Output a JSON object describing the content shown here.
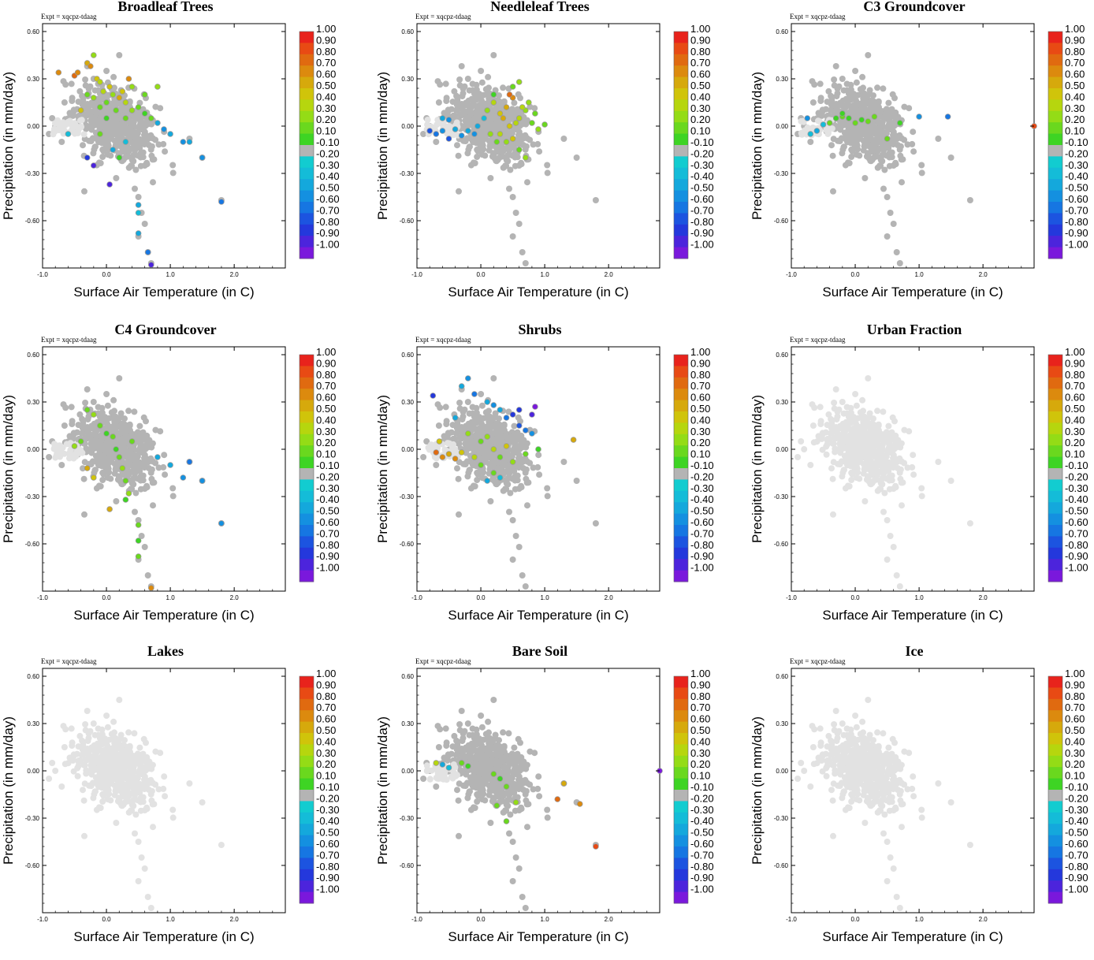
{
  "figure": {
    "xlabel": "Surface Air Temperature (in C)",
    "ylabel": "Precipitation (in mm/day)",
    "expt_label": "Expt = xqcpz-tdaag",
    "xlim": [
      -1.0,
      2.8
    ],
    "ylim": [
      -0.9,
      0.65
    ],
    "xticks": [
      -1.0,
      0.0,
      1.0,
      2.0
    ],
    "xtick_labels": [
      "-1.0",
      "0.0",
      "1.0",
      "2.0"
    ],
    "yticks": [
      0.6,
      0.3,
      0.0,
      -0.3,
      -0.6
    ],
    "ytick_labels": [
      "0.60",
      "0.30",
      "0.00",
      "-0.30",
      "-0.60"
    ],
    "colorbar": {
      "labels": [
        "1.00",
        "0.90",
        "0.80",
        "0.70",
        "0.60",
        "0.50",
        "0.40",
        "0.30",
        "0.20",
        "0.10",
        "-0.10",
        "-0.20",
        "-0.30",
        "-0.40",
        "-0.50",
        "-0.60",
        "-0.70",
        "-0.80",
        "-0.90",
        "-1.00"
      ],
      "colors": [
        "#e8231c",
        "#e84a14",
        "#e06a10",
        "#dc8a0e",
        "#d6a90c",
        "#d0c40a",
        "#b6d60e",
        "#94dc16",
        "#6ad81e",
        "#3ed424",
        "#b4b4b4",
        "#12ccd0",
        "#14bcd8",
        "#14a8dc",
        "#1490e0",
        "#1676e2",
        "#1c54e0",
        "#2438dc",
        "#4c24dc",
        "#7a18dc"
      ]
    }
  },
  "chart_data": [
    {
      "type": "scatter",
      "title": "Broadleaf Trees",
      "xlabel": "Surface Air Temperature (in C)",
      "ylabel": "Precipitation (in mm/day)",
      "xlim": [
        -1.0,
        2.8
      ],
      "ylim": [
        -0.9,
        0.65
      ],
      "points": [
        [
          -0.5,
          0.32,
          0.8
        ],
        [
          -0.45,
          0.34,
          0.7
        ],
        [
          -0.3,
          0.4,
          0.6
        ],
        [
          -0.25,
          0.38,
          0.7
        ],
        [
          -0.2,
          0.45,
          0.3
        ],
        [
          -0.15,
          0.3,
          0.5
        ],
        [
          -0.1,
          0.28,
          0.4
        ],
        [
          -0.3,
          0.2,
          0.2
        ],
        [
          -0.2,
          0.18,
          0.3
        ],
        [
          -0.05,
          0.22,
          0.4
        ],
        [
          0.0,
          0.15,
          0.2
        ],
        [
          0.05,
          0.25,
          0.5
        ],
        [
          0.1,
          0.2,
          0.3
        ],
        [
          0.2,
          0.18,
          0.6
        ],
        [
          0.25,
          0.22,
          0.5
        ],
        [
          0.3,
          0.15,
          0.4
        ],
        [
          0.15,
          0.1,
          0.2
        ],
        [
          0.3,
          0.05,
          0.2
        ],
        [
          0.4,
          0.1,
          0.3
        ],
        [
          0.5,
          0.12,
          0.2
        ],
        [
          0.6,
          0.08,
          0.1
        ],
        [
          0.7,
          0.05,
          0.2
        ],
        [
          0.8,
          0.02,
          -0.3
        ],
        [
          0.9,
          -0.02,
          -0.4
        ],
        [
          1.0,
          -0.05,
          -0.3
        ],
        [
          1.2,
          -0.1,
          -0.4
        ],
        [
          1.3,
          -0.1,
          -0.3
        ],
        [
          1.5,
          -0.2,
          -0.4
        ],
        [
          1.8,
          -0.48,
          -0.5
        ],
        [
          0.5,
          -0.5,
          -0.3
        ],
        [
          0.5,
          -0.55,
          -0.2
        ],
        [
          0.5,
          -0.68,
          -0.3
        ],
        [
          0.65,
          -0.8,
          -0.5
        ],
        [
          0.7,
          -0.88,
          -0.8
        ],
        [
          0.05,
          -0.37,
          -0.8
        ],
        [
          -0.3,
          -0.2,
          -0.7
        ],
        [
          -0.2,
          -0.25,
          -0.8
        ],
        [
          -0.6,
          -0.05,
          -0.2
        ],
        [
          -0.75,
          0.34,
          0.7
        ],
        [
          -0.4,
          0.1,
          0.5
        ],
        [
          -0.1,
          -0.05,
          0.2
        ],
        [
          0.2,
          -0.2,
          0.1
        ],
        [
          0.0,
          0.05,
          0.1
        ],
        [
          -0.1,
          0.12,
          0.2
        ],
        [
          0.4,
          0.25,
          0.3
        ],
        [
          0.6,
          0.2,
          0.2
        ],
        [
          0.8,
          0.25,
          0.3
        ],
        [
          0.3,
          -0.1,
          -0.2
        ],
        [
          0.1,
          -0.15,
          -0.3
        ],
        [
          0.35,
          0.3,
          0.7
        ]
      ]
    },
    {
      "type": "scatter",
      "title": "Needleleaf Trees",
      "xlabel": "Surface Air Temperature (in C)",
      "ylabel": "Precipitation (in mm/day)",
      "xlim": [
        -1.0,
        2.8
      ],
      "ylim": [
        -0.9,
        0.65
      ],
      "points": [
        [
          -0.7,
          -0.05,
          -0.5
        ],
        [
          -0.6,
          -0.03,
          -0.4
        ],
        [
          -0.5,
          -0.08,
          -0.6
        ],
        [
          -0.4,
          -0.02,
          -0.3
        ],
        [
          -0.3,
          -0.06,
          -0.4
        ],
        [
          -0.2,
          -0.03,
          -0.3
        ],
        [
          -0.1,
          -0.05,
          -0.4
        ],
        [
          -0.6,
          0.05,
          -0.3
        ],
        [
          -0.5,
          0.04,
          -0.4
        ],
        [
          -0.8,
          -0.03,
          -0.6
        ],
        [
          0.1,
          0.1,
          0.3
        ],
        [
          0.2,
          0.15,
          0.4
        ],
        [
          0.3,
          0.08,
          0.5
        ],
        [
          0.4,
          0.12,
          0.6
        ],
        [
          0.5,
          0.18,
          0.7
        ],
        [
          0.6,
          0.05,
          0.4
        ],
        [
          0.7,
          0.1,
          0.3
        ],
        [
          0.8,
          0.02,
          0.2
        ],
        [
          0.9,
          -0.02,
          0.3
        ],
        [
          1.0,
          0.01,
          0.2
        ],
        [
          0.3,
          -0.05,
          0.4
        ],
        [
          0.4,
          -0.1,
          0.3
        ],
        [
          0.5,
          -0.08,
          0.5
        ],
        [
          0.6,
          -0.15,
          0.2
        ],
        [
          0.7,
          -0.2,
          0.3
        ],
        [
          0.5,
          0.25,
          0.2
        ],
        [
          0.6,
          0.28,
          0.3
        ],
        [
          0.2,
          0.2,
          0.1
        ],
        [
          0.35,
          0.05,
          0.6
        ],
        [
          0.45,
          0.0,
          0.5
        ],
        [
          0.55,
          0.02,
          0.4
        ],
        [
          0.25,
          -0.1,
          0.2
        ],
        [
          0.15,
          -0.05,
          0.3
        ],
        [
          0.65,
          0.12,
          0.4
        ],
        [
          0.75,
          0.15,
          0.3
        ],
        [
          0.85,
          0.08,
          0.2
        ],
        [
          0.05,
          0.05,
          -0.2
        ],
        [
          -0.05,
          0.0,
          -0.3
        ],
        [
          0.45,
          0.2,
          0.8
        ]
      ]
    },
    {
      "type": "scatter",
      "title": "C3 Groundcover",
      "xlabel": "Surface Air Temperature (in C)",
      "ylabel": "Precipitation (in mm/day)",
      "xlim": [
        -1.0,
        2.8
      ],
      "ylim": [
        -0.9,
        0.65
      ],
      "points": [
        [
          -0.4,
          0.02,
          0.2
        ],
        [
          -0.3,
          0.05,
          0.1
        ],
        [
          -0.2,
          0.06,
          0.2
        ],
        [
          -0.1,
          0.05,
          0.1
        ],
        [
          0.0,
          0.02,
          0.2
        ],
        [
          0.1,
          0.04,
          0.1
        ],
        [
          0.2,
          0.03,
          0.2
        ],
        [
          -0.5,
          0.01,
          -0.2
        ],
        [
          -0.6,
          -0.03,
          -0.3
        ],
        [
          -0.7,
          -0.05,
          -0.2
        ],
        [
          -0.75,
          0.05,
          -0.4
        ],
        [
          0.5,
          -0.08,
          0.2
        ],
        [
          0.7,
          0.02,
          0.1
        ],
        [
          1.0,
          0.06,
          -0.4
        ],
        [
          1.45,
          0.06,
          -0.5
        ],
        [
          2.8,
          0.0,
          0.9
        ],
        [
          -0.2,
          0.08,
          0.1
        ],
        [
          0.3,
          0.06,
          0.2
        ]
      ]
    },
    {
      "type": "scatter",
      "title": "C4 Groundcover",
      "xlabel": "Surface Air Temperature (in C)",
      "ylabel": "Precipitation (in mm/day)",
      "xlim": [
        -1.0,
        2.8
      ],
      "ylim": [
        -0.9,
        0.65
      ],
      "points": [
        [
          -0.3,
          0.25,
          0.2
        ],
        [
          -0.2,
          0.22,
          0.3
        ],
        [
          -0.1,
          0.15,
          0.2
        ],
        [
          0.0,
          0.1,
          0.1
        ],
        [
          0.1,
          0.08,
          0.2
        ],
        [
          0.15,
          0.0,
          0.1
        ],
        [
          0.2,
          -0.05,
          0.2
        ],
        [
          0.25,
          -0.12,
          0.3
        ],
        [
          0.3,
          -0.2,
          0.2
        ],
        [
          0.35,
          -0.28,
          0.3
        ],
        [
          0.3,
          -0.32,
          0.1
        ],
        [
          0.5,
          -0.48,
          0.2
        ],
        [
          0.5,
          -0.58,
          0.1
        ],
        [
          0.5,
          -0.68,
          0.2
        ],
        [
          0.7,
          -0.88,
          0.7
        ],
        [
          0.05,
          -0.38,
          0.6
        ],
        [
          -0.2,
          -0.18,
          0.5
        ],
        [
          -0.3,
          -0.12,
          0.6
        ],
        [
          0.8,
          -0.05,
          -0.3
        ],
        [
          1.0,
          -0.1,
          -0.3
        ],
        [
          1.2,
          -0.18,
          -0.4
        ],
        [
          1.3,
          -0.08,
          -0.5
        ],
        [
          1.5,
          -0.2,
          -0.4
        ],
        [
          1.8,
          -0.47,
          -0.4
        ],
        [
          -0.5,
          0.02,
          0.3
        ],
        [
          -0.4,
          0.05,
          0.2
        ],
        [
          0.4,
          0.05,
          0.2
        ]
      ]
    },
    {
      "type": "scatter",
      "title": "Shrubs",
      "xlabel": "Surface Air Temperature (in C)",
      "ylabel": "Precipitation (in mm/day)",
      "xlim": [
        -1.0,
        2.8
      ],
      "ylim": [
        -0.9,
        0.65
      ],
      "points": [
        [
          -0.7,
          -0.02,
          0.8
        ],
        [
          -0.6,
          -0.05,
          0.7
        ],
        [
          -0.5,
          -0.03,
          0.6
        ],
        [
          -0.4,
          -0.06,
          0.7
        ],
        [
          -0.3,
          -0.02,
          0.5
        ],
        [
          -0.65,
          0.05,
          0.5
        ],
        [
          -0.75,
          0.34,
          -0.7
        ],
        [
          -0.2,
          0.45,
          -0.4
        ],
        [
          -0.3,
          0.4,
          -0.3
        ],
        [
          -0.1,
          0.35,
          -0.5
        ],
        [
          0.1,
          0.3,
          -0.3
        ],
        [
          0.2,
          0.28,
          -0.4
        ],
        [
          0.3,
          0.25,
          -0.3
        ],
        [
          0.4,
          0.2,
          -0.5
        ],
        [
          0.5,
          0.22,
          -0.7
        ],
        [
          0.6,
          0.15,
          -0.6
        ],
        [
          0.7,
          0.12,
          -0.5
        ],
        [
          0.8,
          0.1,
          -0.4
        ],
        [
          0.8,
          0.22,
          -0.8
        ],
        [
          0.85,
          0.27,
          -0.9
        ],
        [
          0.6,
          0.25,
          -0.7
        ],
        [
          0.0,
          0.05,
          0.2
        ],
        [
          0.1,
          0.08,
          0.3
        ],
        [
          0.2,
          0.0,
          0.4
        ],
        [
          0.3,
          -0.05,
          0.2
        ],
        [
          0.4,
          0.02,
          0.5
        ],
        [
          0.5,
          -0.08,
          0.3
        ],
        [
          0.2,
          -0.15,
          0.2
        ],
        [
          0.1,
          -0.2,
          -0.3
        ],
        [
          0.3,
          -0.18,
          -0.2
        ],
        [
          1.45,
          0.06,
          0.6
        ],
        [
          0.9,
          0.0,
          0.1
        ],
        [
          0.7,
          -0.03,
          0.2
        ],
        [
          -0.4,
          0.2,
          -0.3
        ],
        [
          -0.2,
          0.1,
          0.3
        ],
        [
          0.0,
          -0.1,
          0.2
        ],
        [
          -0.1,
          -0.05,
          0.4
        ]
      ]
    },
    {
      "type": "scatter",
      "title": "Urban Fraction",
      "xlabel": "Surface Air Temperature (in C)",
      "ylabel": "Precipitation (in mm/day)",
      "xlim": [
        -1.0,
        2.8
      ],
      "ylim": [
        -0.9,
        0.65
      ],
      "points": []
    },
    {
      "type": "scatter",
      "title": "Lakes",
      "xlabel": "Surface Air Temperature (in C)",
      "ylabel": "Precipitation (in mm/day)",
      "xlim": [
        -1.0,
        2.8
      ],
      "ylim": [
        -0.9,
        0.65
      ],
      "points": []
    },
    {
      "type": "scatter",
      "title": "Bare Soil",
      "xlabel": "Surface Air Temperature (in C)",
      "ylabel": "Precipitation (in mm/day)",
      "xlim": [
        -1.0,
        2.8
      ],
      "ylim": [
        -0.9,
        0.65
      ],
      "points": [
        [
          -0.7,
          0.05,
          0.4
        ],
        [
          -0.6,
          0.04,
          -0.3
        ],
        [
          -0.3,
          0.05,
          0.2
        ],
        [
          -0.2,
          0.03,
          0.1
        ],
        [
          0.2,
          -0.02,
          0.2
        ],
        [
          0.3,
          -0.05,
          0.1
        ],
        [
          0.4,
          -0.1,
          0.2
        ],
        [
          0.25,
          -0.22,
          0.2
        ],
        [
          0.4,
          -0.32,
          0.2
        ],
        [
          0.55,
          -0.2,
          0.3
        ],
        [
          1.2,
          -0.18,
          0.8
        ],
        [
          1.3,
          -0.08,
          0.6
        ],
        [
          1.55,
          -0.21,
          0.7
        ],
        [
          1.8,
          -0.48,
          0.9
        ],
        [
          2.8,
          0.0,
          -0.9
        ],
        [
          -0.5,
          0.02,
          -0.2
        ]
      ]
    },
    {
      "type": "scatter",
      "title": "Ice",
      "xlabel": "Surface Air Temperature (in C)",
      "ylabel": "Precipitation (in mm/day)",
      "xlim": [
        -1.0,
        2.8
      ],
      "ylim": [
        -0.9,
        0.65
      ],
      "points": []
    }
  ]
}
